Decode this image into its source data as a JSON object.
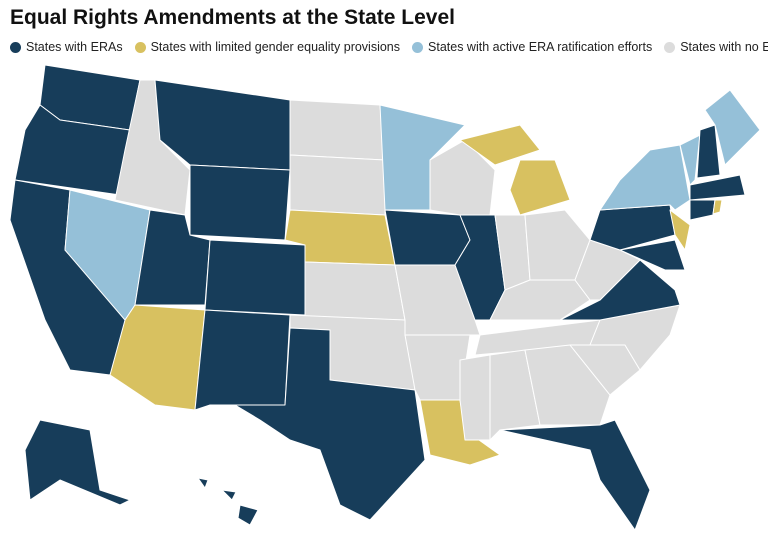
{
  "title": "Equal Rights Amendments at the State Level",
  "legend": [
    {
      "label": "States with ERAs",
      "color": "#173d5a"
    },
    {
      "label": "States with limited gender equality provisions",
      "color": "#d8c160"
    },
    {
      "label": "States with active ERA ratification efforts",
      "color": "#95c0d8"
    },
    {
      "label": "States with no ERA",
      "color": "#dcdcdc"
    }
  ]
}
